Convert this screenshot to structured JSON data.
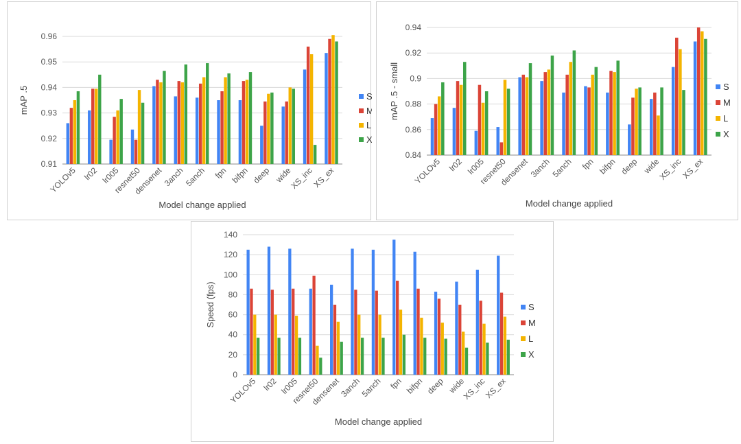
{
  "chart_data": [
    {
      "type": "bar",
      "title": "",
      "xlabel": "Model change applied",
      "ylabel": "mAP .5",
      "ylim": [
        0.91,
        0.96
      ],
      "yticks": [
        "0.91",
        "0.92",
        "0.93",
        "0.94",
        "0.95",
        "0.96"
      ],
      "grid": true,
      "legend": "right",
      "categories": [
        "YOLOv5",
        "lr02",
        "lr005",
        "resnet50",
        "densenet",
        "3anch",
        "5anch",
        "fpn",
        "bifpn",
        "deep",
        "wide",
        "XS_inc",
        "XS_ex"
      ],
      "series": [
        {
          "name": "S",
          "color": "#4285f4",
          "values": [
            0.926,
            0.931,
            0.9195,
            0.9235,
            0.9405,
            0.9365,
            0.936,
            0.935,
            0.935,
            0.925,
            0.9325,
            0.947,
            0.9535
          ]
        },
        {
          "name": "M",
          "color": "#db4437",
          "values": [
            0.932,
            0.9395,
            0.9285,
            0.9195,
            0.943,
            0.9425,
            0.9415,
            0.9385,
            0.9425,
            0.9345,
            0.9345,
            0.956,
            0.959
          ]
        },
        {
          "name": "L",
          "color": "#f4b400",
          "values": [
            0.935,
            0.9395,
            0.931,
            0.939,
            0.942,
            0.942,
            0.944,
            0.944,
            0.943,
            0.9375,
            0.94,
            0.953,
            0.9605
          ]
        },
        {
          "name": "X",
          "color": "#3da449",
          "values": [
            0.9385,
            0.945,
            0.9355,
            0.934,
            0.9465,
            0.949,
            0.9495,
            0.9455,
            0.946,
            0.938,
            0.9395,
            0.9175,
            0.958
          ]
        }
      ]
    },
    {
      "type": "bar",
      "title": "",
      "xlabel": "Model change applied",
      "ylabel": "mAP .5 - small",
      "ylim": [
        0.84,
        0.94
      ],
      "yticks": [
        "0.84",
        "0.86",
        "0.88",
        "0.9",
        "0.92",
        "0.94"
      ],
      "grid": true,
      "legend": "right",
      "categories": [
        "YOLOv5",
        "lr02",
        "lr005",
        "resnet50",
        "densenet",
        "3anch",
        "5anch",
        "fpn",
        "bifpn",
        "deep",
        "wide",
        "XS_inc",
        "XS_ex"
      ],
      "series": [
        {
          "name": "S",
          "color": "#4285f4",
          "values": [
            0.869,
            0.877,
            0.859,
            0.862,
            0.901,
            0.898,
            0.889,
            0.894,
            0.889,
            0.864,
            0.884,
            0.909,
            0.929
          ]
        },
        {
          "name": "M",
          "color": "#db4437",
          "values": [
            0.88,
            0.898,
            0.895,
            0.85,
            0.903,
            0.905,
            0.903,
            0.893,
            0.906,
            0.885,
            0.889,
            0.932,
            0.94
          ]
        },
        {
          "name": "L",
          "color": "#f4b400",
          "values": [
            0.886,
            0.895,
            0.881,
            0.899,
            0.901,
            0.907,
            0.913,
            0.903,
            0.905,
            0.892,
            0.871,
            0.923,
            0.937
          ]
        },
        {
          "name": "X",
          "color": "#3da449",
          "values": [
            0.897,
            0.913,
            0.89,
            0.892,
            0.912,
            0.918,
            0.922,
            0.909,
            0.914,
            0.893,
            0.893,
            0.891,
            0.931
          ]
        }
      ]
    },
    {
      "type": "bar",
      "title": "",
      "xlabel": "Model change applied",
      "ylabel": "Speed (fps)",
      "ylim": [
        0,
        140
      ],
      "yticks": [
        "0",
        "20",
        "40",
        "60",
        "80",
        "100",
        "120",
        "140"
      ],
      "grid": true,
      "legend": "right",
      "categories": [
        "YOLOv5",
        "lr02",
        "lr005",
        "resnet50",
        "densenet",
        "3anch",
        "5anch",
        "fpn",
        "bifpn",
        "deep",
        "wide",
        "XS_inc",
        "XS_ex"
      ],
      "series": [
        {
          "name": "S",
          "color": "#4285f4",
          "values": [
            125,
            128,
            126,
            86,
            90,
            126,
            125,
            135,
            123,
            83,
            93,
            105,
            119
          ]
        },
        {
          "name": "M",
          "color": "#db4437",
          "values": [
            86,
            85,
            86,
            99,
            70,
            85,
            84,
            94,
            86,
            76,
            70,
            74,
            82
          ]
        },
        {
          "name": "L",
          "color": "#f4b400",
          "values": [
            60,
            60,
            59,
            29,
            53,
            60,
            60,
            65,
            57,
            52,
            43,
            51,
            58
          ]
        },
        {
          "name": "X",
          "color": "#3da449",
          "values": [
            37,
            37,
            37,
            17,
            33,
            37,
            37,
            40,
            37,
            36,
            27,
            32,
            35
          ]
        }
      ]
    }
  ]
}
